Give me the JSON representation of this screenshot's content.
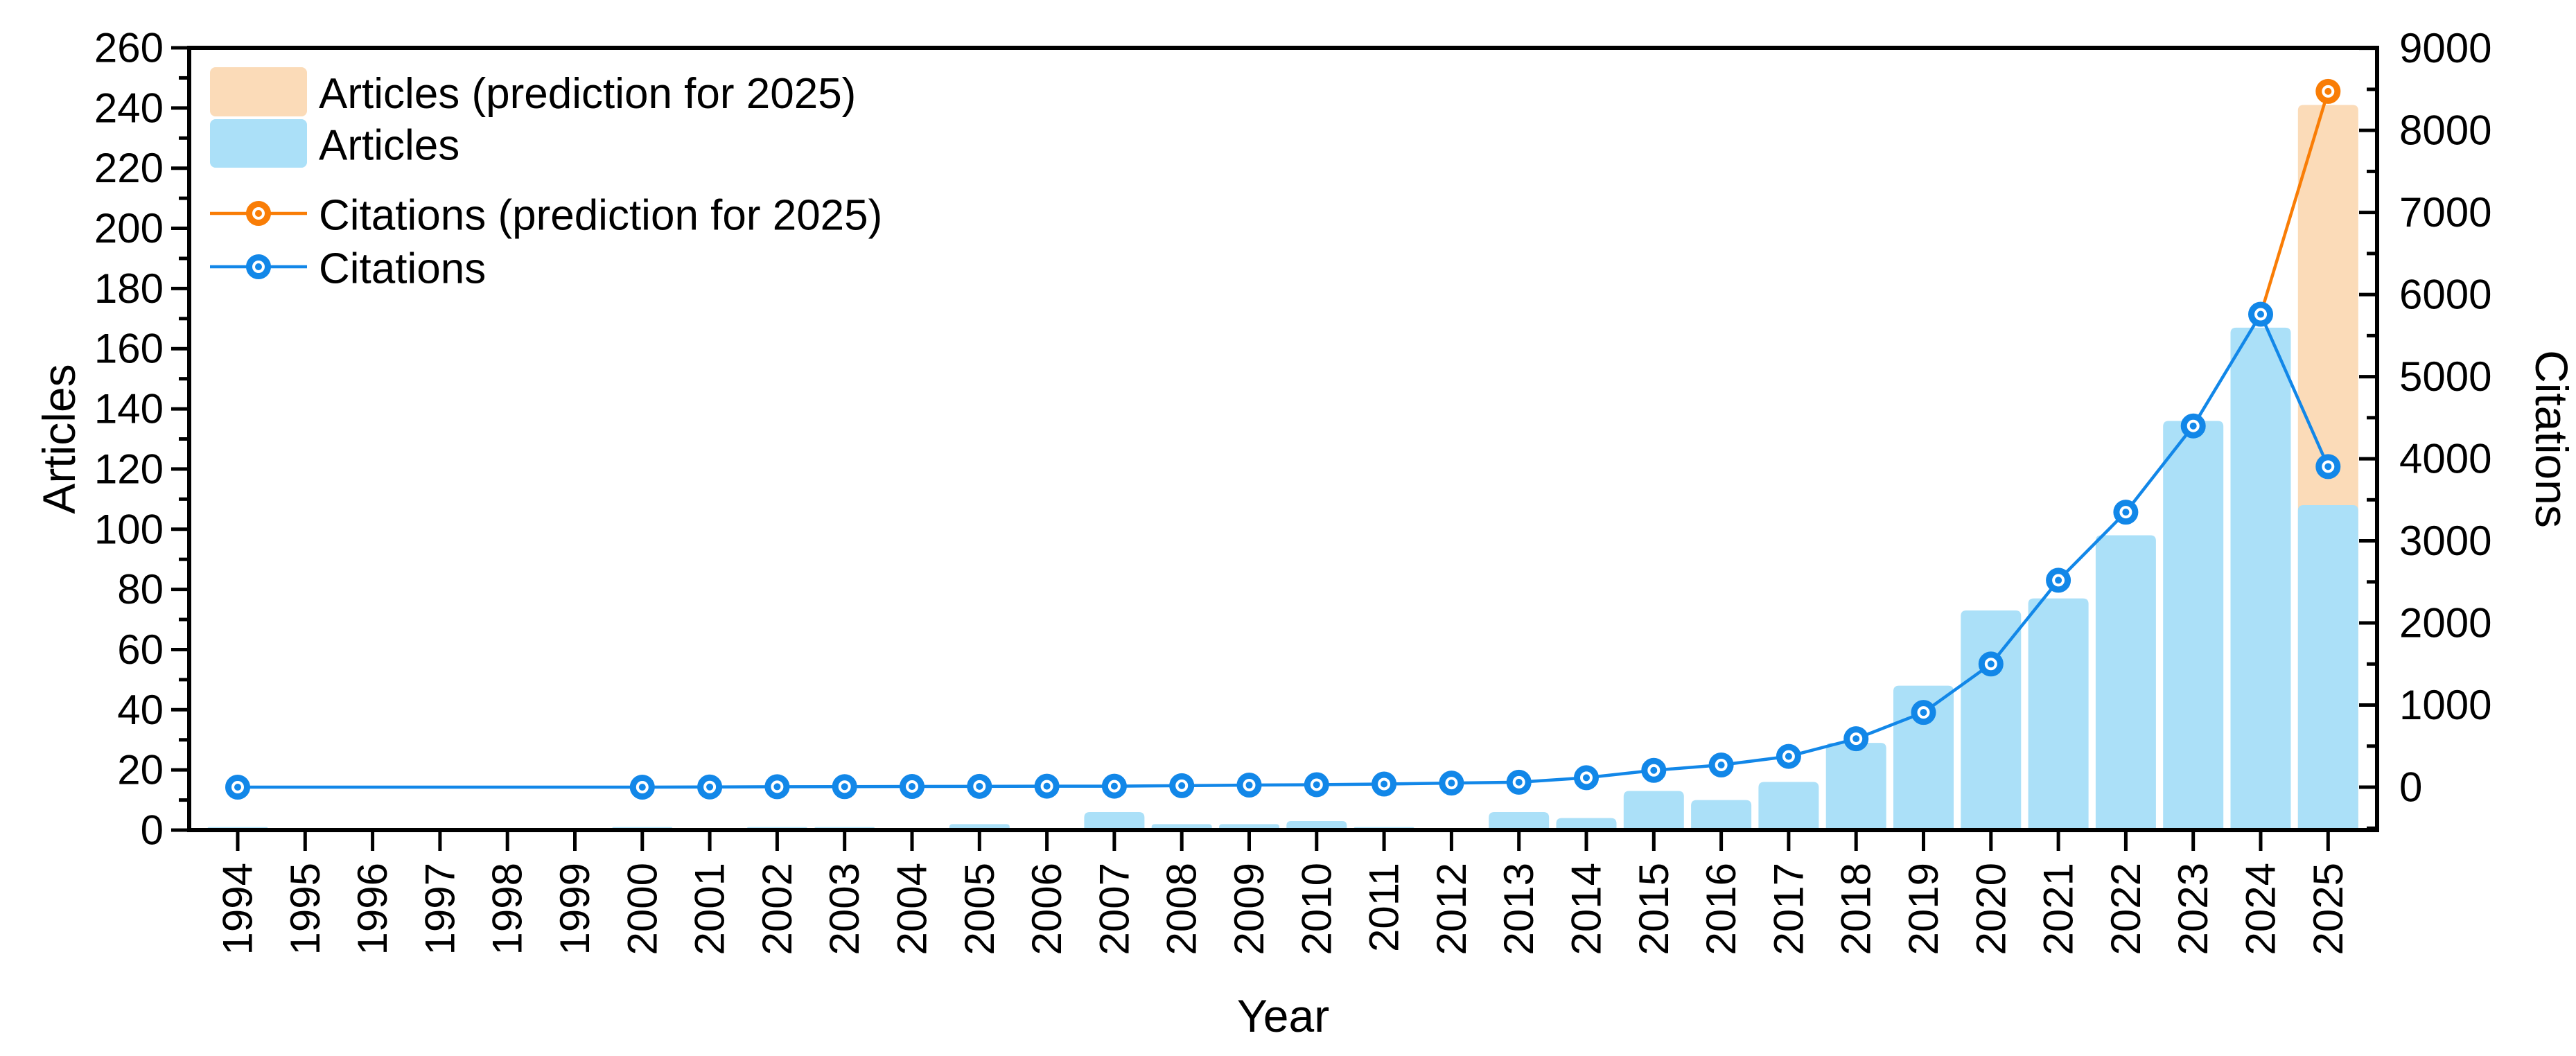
{
  "chart_data": {
    "type": "bar+line-dual-axis",
    "title": "",
    "x": {
      "label": "Year",
      "years": [
        1994,
        1995,
        1996,
        1997,
        1998,
        1999,
        2000,
        2001,
        2002,
        2003,
        2004,
        2005,
        2006,
        2007,
        2008,
        2009,
        2010,
        2011,
        2012,
        2013,
        2014,
        2015,
        2016,
        2017,
        2018,
        2019,
        2020,
        2021,
        2022,
        2023,
        2024,
        2025
      ]
    },
    "axes": {
      "left": {
        "label": "Articles",
        "min": 0,
        "max": 260,
        "major_ticks": [
          0,
          20,
          40,
          60,
          80,
          100,
          120,
          140,
          160,
          180,
          200,
          220,
          240,
          260
        ],
        "minor_step": 10
      },
      "right": {
        "label": "Citations",
        "tick_labels": [
          0,
          1000,
          2000,
          3000,
          4000,
          5000,
          6000,
          7000,
          8000,
          9000
        ],
        "minor_step": 500,
        "min_extension": -500
      }
    },
    "series": [
      {
        "name": "Articles (prediction for 2025)",
        "type": "bar",
        "axis": "left",
        "color": "#FBDBB8",
        "values": [
          null,
          null,
          null,
          null,
          null,
          null,
          null,
          null,
          null,
          null,
          null,
          null,
          null,
          null,
          null,
          null,
          null,
          null,
          null,
          null,
          null,
          null,
          null,
          null,
          null,
          null,
          null,
          null,
          null,
          null,
          null,
          241
        ]
      },
      {
        "name": "Articles",
        "type": "bar",
        "axis": "left",
        "color": "#ABE0F8",
        "values": [
          1,
          0,
          0,
          0,
          0,
          0,
          1,
          0,
          1,
          1,
          0,
          2,
          0,
          6,
          2,
          2,
          3,
          1,
          0,
          6,
          4,
          13,
          10,
          16,
          29,
          48,
          73,
          77,
          98,
          136,
          167,
          108
        ]
      },
      {
        "name": "Citations (prediction for 2025)",
        "type": "line",
        "axis": "right",
        "color": "#F97D06",
        "values": [
          null,
          null,
          null,
          null,
          null,
          null,
          null,
          null,
          null,
          null,
          null,
          null,
          null,
          null,
          null,
          null,
          null,
          null,
          null,
          null,
          null,
          null,
          null,
          null,
          null,
          null,
          null,
          null,
          null,
          null,
          null,
          8475
        ],
        "connects_from": {
          "year": 2024,
          "value": 5760
        }
      },
      {
        "name": "Citations",
        "type": "line",
        "axis": "right",
        "color": "#1287E8",
        "values": [
          0,
          null,
          null,
          null,
          null,
          null,
          0,
          2,
          5,
          6,
          8,
          10,
          12,
          12,
          18,
          25,
          30,
          38,
          50,
          60,
          115,
          205,
          270,
          375,
          590,
          910,
          1500,
          2520,
          3350,
          4400,
          5760,
          3905
        ]
      }
    ],
    "legend": {
      "entries": [
        {
          "swatch": "bar",
          "color": "#FBDBB8",
          "label": "Articles (prediction for 2025)"
        },
        {
          "swatch": "bar",
          "color": "#ABE0F8",
          "label": "Articles"
        },
        {
          "swatch": "marker",
          "color": "#F97D06",
          "label": "Citations (prediction for 2025)"
        },
        {
          "swatch": "marker",
          "color": "#1287E8",
          "label": "Citations"
        }
      ],
      "position": "top-left"
    },
    "colors": {
      "bar_blue": "#ABE0F8",
      "bar_orange": "#FBDBB8",
      "line_blue": "#1287E8",
      "line_orange": "#F97D06",
      "axis_black": "#000000"
    }
  }
}
